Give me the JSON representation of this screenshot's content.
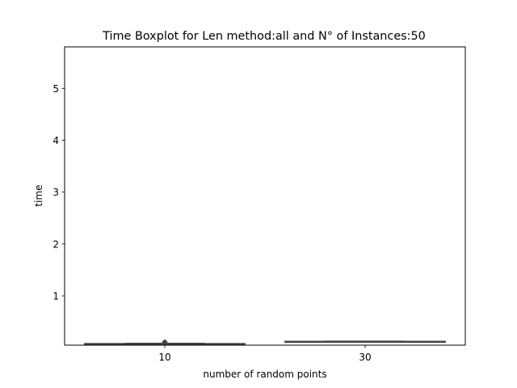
{
  "chart_data": {
    "type": "box",
    "title": "Time Boxplot for Len method:all and N° of Instances:50",
    "xlabel": "number of random points",
    "ylabel": "time",
    "categories": [
      "10",
      "30"
    ],
    "ylim": [
      0.05,
      5.8
    ],
    "yticks": [
      1,
      2,
      3,
      4,
      5
    ],
    "boxes": [
      {
        "category": "10",
        "whislo": 0.065,
        "q1": 0.07,
        "median": 0.075,
        "q3": 0.08,
        "whishi": 0.085,
        "fliers": [
          0.11
        ]
      },
      {
        "category": "30",
        "whislo": 0.115,
        "q1": 0.118,
        "median": 0.12,
        "q3": 0.122,
        "whishi": 0.125,
        "fliers": []
      }
    ],
    "box_color": "#444444",
    "grid": false,
    "legend": "none"
  }
}
